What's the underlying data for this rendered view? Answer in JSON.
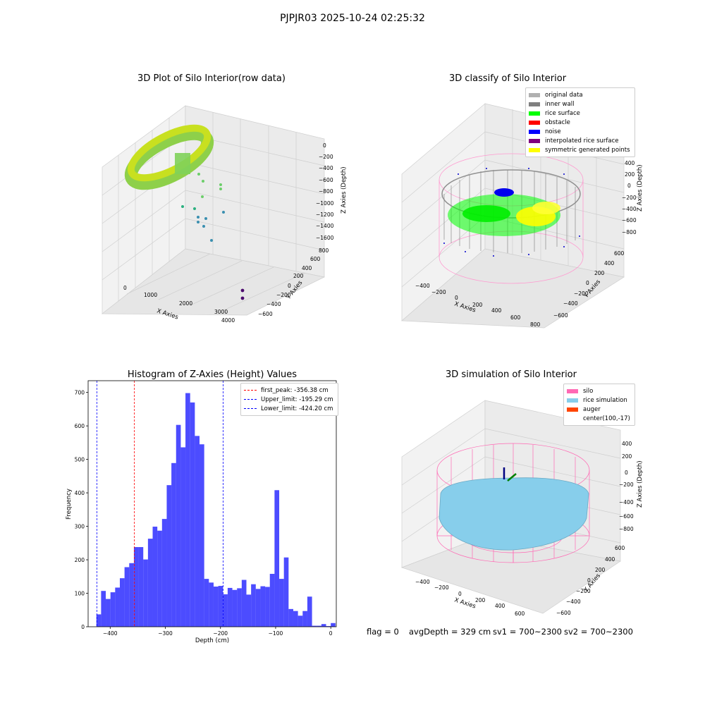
{
  "suptitle": "PJPJR03 2025-10-24 02:25:32",
  "panels": {
    "raw": {
      "title": "3D Plot of Silo Interior(row data)",
      "x_label": "X Axies",
      "y_label": "Y Axies",
      "z_label": "Z Axies (Depth)",
      "x_ticks": [
        "0",
        "1000",
        "2000",
        "3000",
        "4000"
      ],
      "y_ticks": [
        "800",
        "600",
        "400",
        "200",
        "0",
        "−200",
        "−400",
        "−600"
      ],
      "z_ticks": [
        "0",
        "−200",
        "−400",
        "−600",
        "−800",
        "−1000",
        "−1200",
        "−1400",
        "−1600"
      ]
    },
    "classify": {
      "title": "3D classify of Silo Interior",
      "x_label": "X Axies",
      "y_label": "Y Axies",
      "z_label": "Z Axies (Depth)",
      "x_ticks": [
        "−400",
        "−200",
        "0",
        "200",
        "400",
        "600",
        "800"
      ],
      "y_ticks": [
        "600",
        "400",
        "200",
        "0",
        "−200",
        "−400",
        "−600"
      ],
      "z_ticks": [
        "400",
        "200",
        "0",
        "−200",
        "−400",
        "−600",
        "−800"
      ],
      "legend": [
        {
          "label": "original data",
          "color": "#b0b0b0"
        },
        {
          "label": "inner wall",
          "color": "#808080"
        },
        {
          "label": "rice surface",
          "color": "#00ff00"
        },
        {
          "label": "obstacle",
          "color": "#ff0000"
        },
        {
          "label": "noise",
          "color": "#0000ff"
        },
        {
          "label": "interpolated rice surface",
          "color": "#800080"
        },
        {
          "label": "symmetric generated points",
          "color": "#ffff00"
        }
      ]
    },
    "simulation": {
      "title": "3D simulation of Silo Interior",
      "x_label": "X Axies",
      "y_label": "Y Axies",
      "z_label": "Z Axies (Depth)",
      "x_ticks": [
        "−400",
        "−200",
        "0",
        "200",
        "400",
        "600"
      ],
      "y_ticks": [
        "600",
        "400",
        "200",
        "0",
        "−200",
        "−400",
        "−600"
      ],
      "z_ticks": [
        "400",
        "200",
        "0",
        "−200",
        "−400",
        "−600",
        "−800"
      ],
      "legend": [
        {
          "label": "silo",
          "color": "#ff69b4"
        },
        {
          "label": "rice simulation",
          "color": "#87ceeb"
        },
        {
          "label": "auger",
          "color": "#ff4500"
        },
        {
          "label": "center(100,-17)",
          "color": "none"
        }
      ]
    }
  },
  "footer": {
    "flag": "flag = 0",
    "avg_depth": "avgDepth = 329 cm",
    "sv1": "sv1 = 700~2300",
    "sv2": "sv2 = 700~2300"
  },
  "chart_data": {
    "type": "bar",
    "title": "Histogram of Z-Axies (Height) Values",
    "xlabel": "Depth (cm)",
    "ylabel": "Frequency",
    "xlim": [
      -440,
      10
    ],
    "ylim": [
      0,
      735
    ],
    "x_ticks": [
      -400,
      -300,
      -200,
      -100,
      0
    ],
    "x_tick_labels": [
      "−400",
      "−300",
      "−200",
      "−100",
      "0"
    ],
    "y_ticks": [
      0,
      100,
      200,
      300,
      400,
      500,
      600,
      700
    ],
    "bar_color": "#0000ff",
    "bin_width": 8.5,
    "bins_start": -425,
    "values": [
      37,
      107,
      83,
      103,
      117,
      145,
      178,
      190,
      238,
      238,
      201,
      263,
      299,
      287,
      322,
      423,
      489,
      603,
      536,
      698,
      670,
      570,
      545,
      143,
      132,
      120,
      122,
      97,
      116,
      110,
      115,
      140,
      96,
      127,
      113,
      121,
      119,
      158,
      408,
      143,
      207,
      53,
      47,
      33,
      47,
      90,
      3,
      3,
      8,
      2,
      11
    ],
    "lines": [
      {
        "label": "first_peak: -356.38 cm",
        "x": -356.38,
        "color": "#ff0000"
      },
      {
        "label": "Upper_limit: -195.29 cm",
        "x": -195.29,
        "color": "#0000ff"
      },
      {
        "label": "Lower_limit: -424.20 cm",
        "x": -424.2,
        "color": "#0000ff"
      }
    ]
  }
}
